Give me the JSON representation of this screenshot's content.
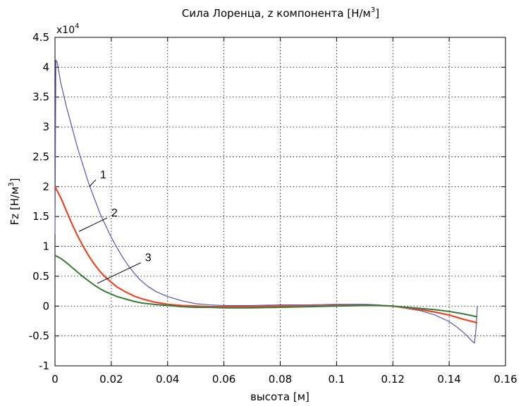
{
  "chart_data": {
    "type": "line",
    "title": "Сила Лоренца, z компонента [Н/м",
    "title_sup": "3",
    "title_end": "]",
    "xlabel": "высота [м]",
    "ylabel": "Fz [Н/м",
    "ylabel_sup": "3",
    "ylabel_end": "]",
    "y_multiplier": "x10",
    "y_multiplier_exp": "4",
    "xlim": [
      0,
      0.16
    ],
    "ylim": [
      -1,
      4.5
    ],
    "grid": true,
    "x_ticks": [
      "0",
      "0.02",
      "0.04",
      "0.06",
      "0.08",
      "0.1",
      "0.12",
      "0.14",
      "0.16"
    ],
    "y_ticks": [
      "-1",
      "-0.5",
      "0",
      "0.5",
      "1",
      "1.5",
      "2",
      "2.5",
      "3",
      "3.5",
      "4",
      "4.5"
    ],
    "colors": {
      "series1": "#5555b0",
      "series2": "#e8472a",
      "series3": "#3b7a3b",
      "grid": "#000000",
      "axes": "#000000"
    },
    "series": [
      {
        "name": "1",
        "x": [
          0,
          0.0003,
          0.0008,
          0.002,
          0.004,
          0.006,
          0.008,
          0.01,
          0.012,
          0.014,
          0.016,
          0.018,
          0.02,
          0.022,
          0.024,
          0.026,
          0.028,
          0.03,
          0.033,
          0.036,
          0.04,
          0.045,
          0.05,
          0.055,
          0.06,
          0.07,
          0.08,
          0.09,
          0.1,
          0.11,
          0.115,
          0.12,
          0.125,
          0.13,
          0.135,
          0.14,
          0.143,
          0.146,
          0.148,
          0.149,
          0.1495,
          0.15
        ],
        "y": [
          1.2,
          4.12,
          4.08,
          3.75,
          3.35,
          3.0,
          2.65,
          2.35,
          2.05,
          1.8,
          1.55,
          1.35,
          1.15,
          0.98,
          0.82,
          0.68,
          0.56,
          0.45,
          0.33,
          0.24,
          0.16,
          0.09,
          0.04,
          0.02,
          0.01,
          0.01,
          0.02,
          0.02,
          0.03,
          0.03,
          0.02,
          0.0,
          -0.04,
          -0.08,
          -0.15,
          -0.26,
          -0.36,
          -0.48,
          -0.58,
          -0.62,
          -0.4,
          0.0
        ]
      },
      {
        "name": "2",
        "x": [
          0,
          0.002,
          0.004,
          0.006,
          0.008,
          0.01,
          0.012,
          0.014,
          0.016,
          0.018,
          0.02,
          0.022,
          0.025,
          0.028,
          0.031,
          0.035,
          0.04,
          0.045,
          0.05,
          0.055,
          0.06,
          0.07,
          0.08,
          0.09,
          0.1,
          0.11,
          0.115,
          0.12,
          0.125,
          0.13,
          0.135,
          0.14,
          0.145,
          0.15
        ],
        "y": [
          2.0,
          1.82,
          1.6,
          1.38,
          1.18,
          1.0,
          0.84,
          0.7,
          0.58,
          0.48,
          0.4,
          0.32,
          0.24,
          0.17,
          0.12,
          0.07,
          0.03,
          0.01,
          0.0,
          -0.01,
          -0.01,
          -0.01,
          0.0,
          0.0,
          0.01,
          0.01,
          0.01,
          0.0,
          -0.03,
          -0.06,
          -0.1,
          -0.15,
          -0.22,
          -0.28
        ]
      },
      {
        "name": "3",
        "x": [
          0,
          0.002,
          0.004,
          0.006,
          0.008,
          0.01,
          0.012,
          0.014,
          0.016,
          0.018,
          0.02,
          0.022,
          0.025,
          0.028,
          0.031,
          0.035,
          0.04,
          0.045,
          0.05,
          0.055,
          0.06,
          0.07,
          0.08,
          0.09,
          0.1,
          0.11,
          0.115,
          0.12,
          0.125,
          0.13,
          0.135,
          0.14,
          0.145,
          0.15
        ],
        "y": [
          0.85,
          0.8,
          0.73,
          0.65,
          0.57,
          0.49,
          0.42,
          0.35,
          0.29,
          0.24,
          0.2,
          0.16,
          0.12,
          0.08,
          0.05,
          0.03,
          0.01,
          -0.01,
          -0.02,
          -0.02,
          -0.03,
          -0.03,
          -0.02,
          -0.01,
          0.0,
          0.01,
          0.01,
          0.0,
          -0.02,
          -0.04,
          -0.06,
          -0.09,
          -0.13,
          -0.18
        ]
      }
    ],
    "annotations": [
      {
        "text": "1",
        "x": 0.016,
        "y": 2.14,
        "arrow_to": [
          0.0122,
          2.0
        ]
      },
      {
        "text": "2",
        "x": 0.02,
        "y": 1.5,
        "arrow_to": [
          0.0085,
          1.25
        ]
      },
      {
        "text": "3",
        "x": 0.032,
        "y": 0.75,
        "arrow_to": [
          0.015,
          0.38
        ]
      }
    ]
  }
}
